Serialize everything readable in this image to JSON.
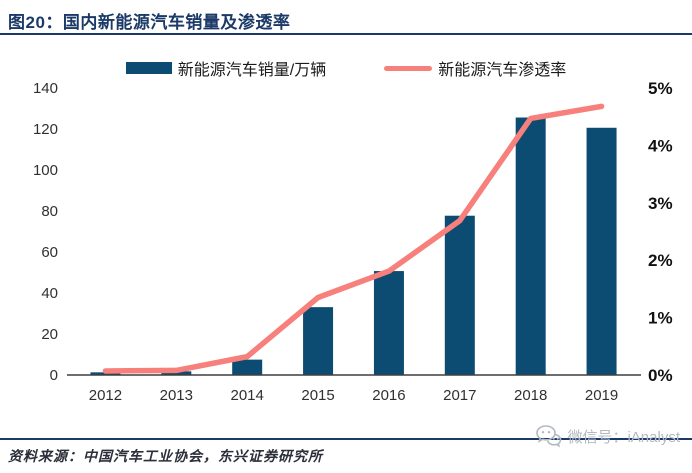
{
  "header": {
    "title": "图20：国内新能源汽车销量及渗透率"
  },
  "legend": [
    {
      "label": "新能源汽车销量/万辆",
      "type": "bar",
      "color": "#0d4c72"
    },
    {
      "label": "新能源汽车渗透率",
      "type": "line",
      "color": "#f7807c"
    }
  ],
  "chart_data": {
    "type": "bar+line combo",
    "categories": [
      "2012",
      "2013",
      "2014",
      "2015",
      "2016",
      "2017",
      "2018",
      "2019"
    ],
    "series": [
      {
        "name": "新能源汽车销量/万辆",
        "type": "bar",
        "axis": "left",
        "color": "#0d4c72",
        "values": [
          1.3,
          1.8,
          7.5,
          33.1,
          50.7,
          77.7,
          125.6,
          120.6
        ]
      },
      {
        "name": "新能源汽车渗透率",
        "type": "line",
        "axis": "right",
        "unit": "%",
        "color": "#f7807c",
        "values": [
          0.07,
          0.08,
          0.32,
          1.35,
          1.81,
          2.69,
          4.47,
          4.68
        ]
      }
    ],
    "left_axis": {
      "min": 0,
      "max": 140,
      "ticks": [
        "0",
        "20",
        "40",
        "60",
        "80",
        "100",
        "120",
        "140"
      ]
    },
    "right_axis": {
      "min": 0,
      "max": 5,
      "ticks": [
        "0%",
        "1%",
        "2%",
        "3%",
        "4%",
        "5%"
      ]
    },
    "grid": false,
    "legend_position": "top",
    "axis_line_color": "#3f3f3f"
  },
  "footer": {
    "source": "资料来源：中国汽车工业协会，东兴证券研究所",
    "watermark": "微信号：iAnalyst"
  }
}
